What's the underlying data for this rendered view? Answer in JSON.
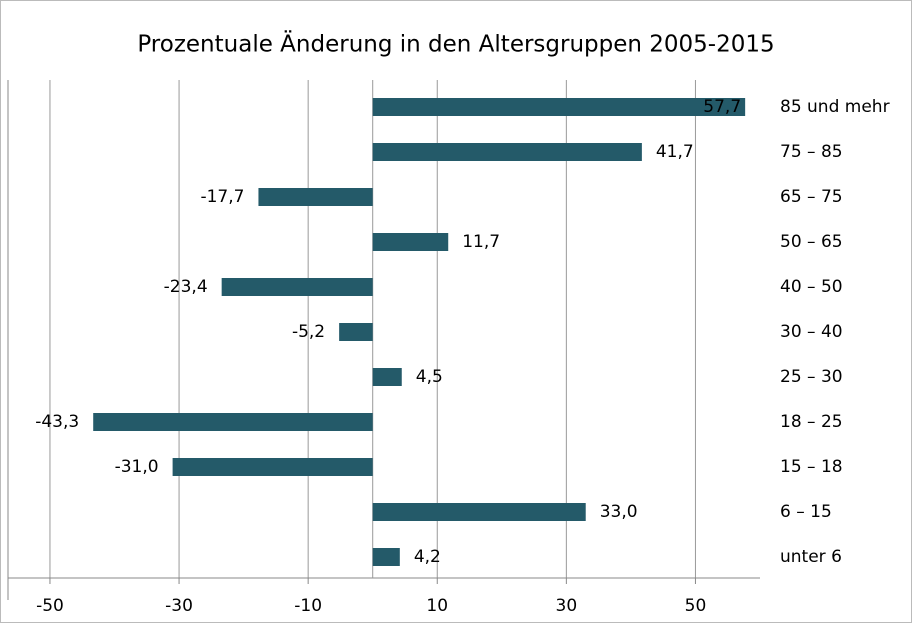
{
  "chart_data": {
    "type": "barh",
    "title": "Prozentuale Änderung in den Altersgruppen 2005-2015",
    "categories": [
      "85 und mehr",
      "75 – 85",
      "65 – 75",
      "50 – 65",
      "40 – 50",
      "30 – 40",
      "25 – 30",
      "18 – 25",
      "15 – 18",
      "6 – 15",
      "unter 6"
    ],
    "values": [
      57.7,
      41.7,
      -17.7,
      11.7,
      -23.4,
      -5.2,
      4.5,
      -43.3,
      -31.0,
      33.0,
      4.2
    ],
    "value_labels": [
      "57,7",
      "41,7",
      "-17,7",
      "11,7",
      "-23,4",
      "-5,2",
      "4,5",
      "-43,3",
      "-31,0",
      "33,0",
      "4,2"
    ],
    "color": "#245a69",
    "xlim": [
      -56.5,
      60
    ],
    "xticks": [
      -50,
      -30,
      -10,
      10,
      30,
      50
    ],
    "grid": true
  }
}
